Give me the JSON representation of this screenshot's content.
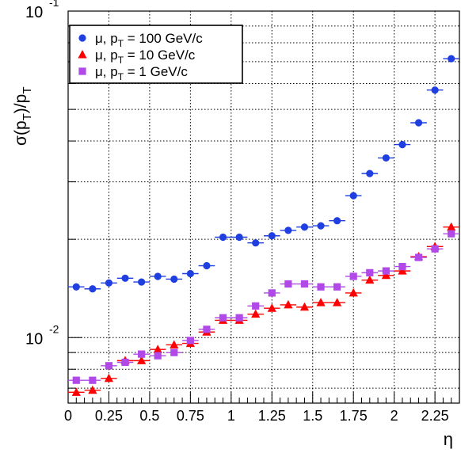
{
  "chart_data": {
    "type": "scatter",
    "ylabel": "σ(p_T)/p_T",
    "xlabel": "η",
    "xlim": [
      0,
      2.4
    ],
    "ylim": [
      0.0063,
      0.1
    ],
    "yscale": "log",
    "grid": true,
    "legend_position": "top-left",
    "x_ticks": [
      0,
      0.25,
      0.5,
      0.75,
      1,
      1.25,
      1.5,
      1.75,
      2,
      2.25
    ],
    "x_tick_labels": [
      "0",
      "0.25",
      "0.5",
      "0.75",
      "1",
      "1.25",
      "1.5",
      "1.75",
      "2",
      "2.25"
    ],
    "y_major_ticks": [
      {
        "value": 0.01,
        "mantissa": "10",
        "exponent": "-2"
      },
      {
        "value": 0.1,
        "mantissa": "10",
        "exponent": "-1"
      }
    ],
    "y_minor_ticks": [
      0.007,
      0.008,
      0.009,
      0.02,
      0.03,
      0.04,
      0.05,
      0.06,
      0.07,
      0.08,
      0.09
    ],
    "x_bin_halfwidth": 0.05,
    "series": [
      {
        "name_main": "μ, p",
        "name_sub": "T",
        "name_rest": " = 100 GeV/c",
        "marker": "circle",
        "color": "#1f3fe0",
        "x": [
          0.05,
          0.15,
          0.25,
          0.35,
          0.45,
          0.55,
          0.65,
          0.75,
          0.85,
          0.95,
          1.05,
          1.15,
          1.25,
          1.35,
          1.45,
          1.55,
          1.65,
          1.75,
          1.85,
          1.95,
          2.05,
          2.15,
          2.25,
          2.35
        ],
        "y": [
          0.0143,
          0.0141,
          0.0147,
          0.0152,
          0.0148,
          0.0154,
          0.0151,
          0.0157,
          0.0166,
          0.0203,
          0.0203,
          0.0195,
          0.0205,
          0.0213,
          0.0218,
          0.022,
          0.0228,
          0.0272,
          0.0318,
          0.0355,
          0.039,
          0.0455,
          0.0573,
          0.0715
        ]
      },
      {
        "name_main": "μ, p",
        "name_sub": "T",
        "name_rest": " = 10 GeV/c",
        "marker": "triangle",
        "color": "#ff0000",
        "x": [
          0.05,
          0.15,
          0.25,
          0.35,
          0.45,
          0.55,
          0.65,
          0.75,
          0.85,
          0.95,
          1.05,
          1.15,
          1.25,
          1.35,
          1.45,
          1.55,
          1.65,
          1.75,
          1.85,
          1.95,
          2.05,
          2.15,
          2.25,
          2.35
        ],
        "y": [
          0.0068,
          0.0069,
          0.0075,
          0.0085,
          0.0085,
          0.0092,
          0.0095,
          0.0096,
          0.0104,
          0.0113,
          0.0113,
          0.0118,
          0.0123,
          0.0126,
          0.0124,
          0.0128,
          0.0128,
          0.0137,
          0.015,
          0.0155,
          0.016,
          0.0177,
          0.019,
          0.0218
        ]
      },
      {
        "name_main": "μ, p",
        "name_sub": "T",
        "name_rest": " = 1 GeV/c",
        "marker": "square",
        "color": "#b148e8",
        "x": [
          0.05,
          0.15,
          0.25,
          0.35,
          0.45,
          0.55,
          0.65,
          0.75,
          0.85,
          0.95,
          1.05,
          1.15,
          1.25,
          1.35,
          1.45,
          1.55,
          1.65,
          1.75,
          1.85,
          1.95,
          2.05,
          2.15,
          2.25,
          2.35
        ],
        "y": [
          0.0074,
          0.0074,
          0.0082,
          0.0084,
          0.0089,
          0.0088,
          0.009,
          0.0098,
          0.0106,
          0.0115,
          0.0115,
          0.0125,
          0.0137,
          0.0146,
          0.0146,
          0.0143,
          0.0143,
          0.0154,
          0.0158,
          0.016,
          0.0165,
          0.0176,
          0.0187,
          0.0208
        ]
      }
    ]
  }
}
